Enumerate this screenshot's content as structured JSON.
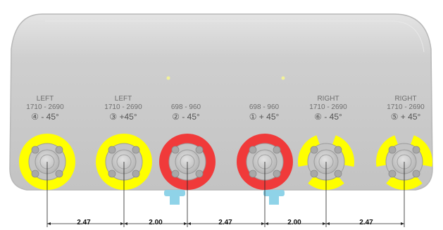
{
  "ports": [
    {
      "side": "LEFT",
      "band": "1710 - 2690",
      "number": "④",
      "polarization": "- 45°",
      "color": "#ffff00",
      "style": "full"
    },
    {
      "side": "LEFT",
      "band": "1710 - 2690",
      "number": "③",
      "polarization": "+45°",
      "color": "#ffff00",
      "style": "full"
    },
    {
      "side": "",
      "band": "698 - 960",
      "number": "②",
      "polarization": "- 45°",
      "color": "#f03a3a",
      "style": "full"
    },
    {
      "side": "",
      "band": "698 - 960",
      "number": "①",
      "polarization": "+ 45°",
      "color": "#f03a3a",
      "style": "full"
    },
    {
      "side": "RIGHT",
      "band": "1710 - 2690",
      "number": "⑥",
      "polarization": "- 45°",
      "color": "#ffff00",
      "style": "tri"
    },
    {
      "side": "RIGHT",
      "band": "1710 - 2690",
      "number": "⑤",
      "polarization": "+ 45°",
      "color": "#ffff00",
      "style": "tri"
    }
  ],
  "dimensions": [
    "2.47",
    "2.00",
    "2.47",
    "2.00",
    "2.47"
  ],
  "colors": {
    "panel": "#c9c9c9",
    "panel_edge": "#b3b3b3",
    "connector": "#c4c4c4",
    "bolt": "#a8a8a8",
    "led": "#f2f299",
    "fitting": "#8fd3e8"
  }
}
